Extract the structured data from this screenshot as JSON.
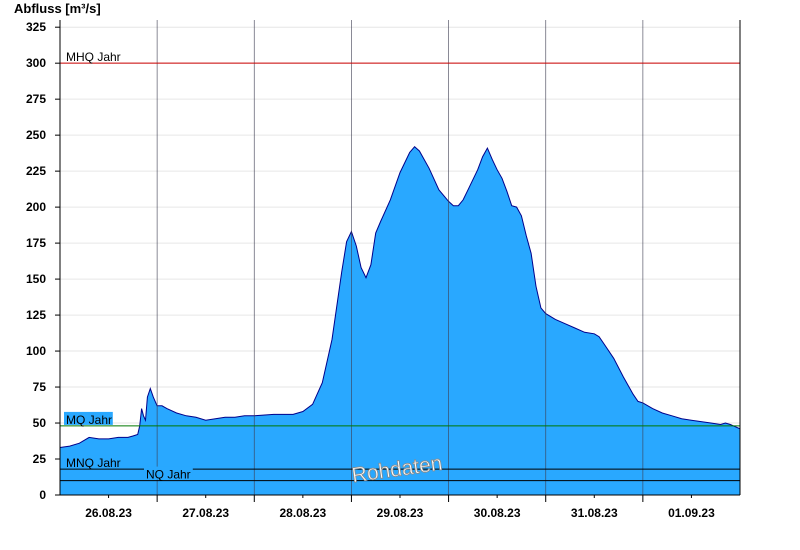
{
  "chart_data": {
    "type": "area",
    "ylabel": "Abfluss [m³/s]",
    "ylim": [
      0,
      330
    ],
    "yticks": [
      0,
      25,
      50,
      75,
      100,
      125,
      150,
      175,
      200,
      225,
      250,
      275,
      300,
      325
    ],
    "xlim": [
      0,
      7
    ],
    "x_unit": "days from 26.08.23 00:00 (axis starts 25.08.23 12:00)",
    "xticks": [
      {
        "x": 0.5,
        "label": "26.08.23"
      },
      {
        "x": 1.5,
        "label": "27.08.23"
      },
      {
        "x": 2.5,
        "label": "28.08.23"
      },
      {
        "x": 3.5,
        "label": "29.08.23"
      },
      {
        "x": 4.5,
        "label": "30.08.23"
      },
      {
        "x": 5.5,
        "label": "31.08.23"
      },
      {
        "x": 6.5,
        "label": "01.09.23"
      }
    ],
    "day_lines": [
      1,
      2,
      3,
      4,
      5,
      6
    ],
    "grid": true,
    "fill_color": "#29a8ff",
    "line_color": "#00008b",
    "reference_lines": [
      {
        "name": "MHQ Jahr",
        "value": 300,
        "color": "#cc0000"
      },
      {
        "name": "MQ Jahr",
        "value": 48,
        "color": "#007700"
      },
      {
        "name": "MNQ Jahr",
        "value": 18,
        "color": "#000000"
      },
      {
        "name": "NQ Jahr",
        "value": 10,
        "color": "#000000"
      }
    ],
    "watermark": "Rohdaten",
    "series": [
      {
        "points": [
          [
            0.0,
            33
          ],
          [
            0.1,
            34
          ],
          [
            0.2,
            36
          ],
          [
            0.3,
            40
          ],
          [
            0.4,
            39
          ],
          [
            0.5,
            39
          ],
          [
            0.6,
            40
          ],
          [
            0.7,
            40
          ],
          [
            0.75,
            41
          ],
          [
            0.8,
            42
          ],
          [
            0.82,
            48
          ],
          [
            0.84,
            60
          ],
          [
            0.86,
            55
          ],
          [
            0.88,
            52
          ],
          [
            0.9,
            68
          ],
          [
            0.93,
            74
          ],
          [
            0.96,
            68
          ],
          [
            1.0,
            62
          ],
          [
            1.05,
            62
          ],
          [
            1.1,
            60
          ],
          [
            1.2,
            57
          ],
          [
            1.3,
            55
          ],
          [
            1.4,
            54
          ],
          [
            1.5,
            52
          ],
          [
            1.6,
            53
          ],
          [
            1.7,
            54
          ],
          [
            1.8,
            54
          ],
          [
            1.9,
            55
          ],
          [
            2.0,
            55
          ],
          [
            2.2,
            56
          ],
          [
            2.4,
            56
          ],
          [
            2.5,
            58
          ],
          [
            2.6,
            63
          ],
          [
            2.7,
            78
          ],
          [
            2.8,
            108
          ],
          [
            2.9,
            155
          ],
          [
            2.95,
            176
          ],
          [
            3.0,
            183
          ],
          [
            3.05,
            173
          ],
          [
            3.1,
            158
          ],
          [
            3.15,
            151
          ],
          [
            3.2,
            160
          ],
          [
            3.25,
            182
          ],
          [
            3.3,
            190
          ],
          [
            3.4,
            205
          ],
          [
            3.5,
            224
          ],
          [
            3.6,
            238
          ],
          [
            3.65,
            242
          ],
          [
            3.7,
            239
          ],
          [
            3.8,
            227
          ],
          [
            3.9,
            212
          ],
          [
            4.0,
            204
          ],
          [
            4.05,
            201
          ],
          [
            4.1,
            201
          ],
          [
            4.15,
            205
          ],
          [
            4.2,
            212
          ],
          [
            4.3,
            226
          ],
          [
            4.35,
            235
          ],
          [
            4.4,
            241
          ],
          [
            4.45,
            233
          ],
          [
            4.5,
            226
          ],
          [
            4.55,
            220
          ],
          [
            4.6,
            211
          ],
          [
            4.65,
            201
          ],
          [
            4.7,
            200
          ],
          [
            4.75,
            194
          ],
          [
            4.8,
            180
          ],
          [
            4.85,
            168
          ],
          [
            4.9,
            145
          ],
          [
            4.95,
            130
          ],
          [
            5.0,
            126
          ],
          [
            5.1,
            122
          ],
          [
            5.2,
            119
          ],
          [
            5.3,
            116
          ],
          [
            5.4,
            113
          ],
          [
            5.5,
            112
          ],
          [
            5.55,
            110
          ],
          [
            5.6,
            105
          ],
          [
            5.7,
            95
          ],
          [
            5.8,
            82
          ],
          [
            5.9,
            70
          ],
          [
            5.95,
            65
          ],
          [
            6.0,
            64
          ],
          [
            6.1,
            60
          ],
          [
            6.2,
            57
          ],
          [
            6.3,
            55
          ],
          [
            6.4,
            53
          ],
          [
            6.5,
            52
          ],
          [
            6.6,
            51
          ],
          [
            6.7,
            50
          ],
          [
            6.8,
            49
          ],
          [
            6.85,
            50
          ],
          [
            6.9,
            49
          ],
          [
            7.0,
            46
          ]
        ]
      }
    ]
  }
}
